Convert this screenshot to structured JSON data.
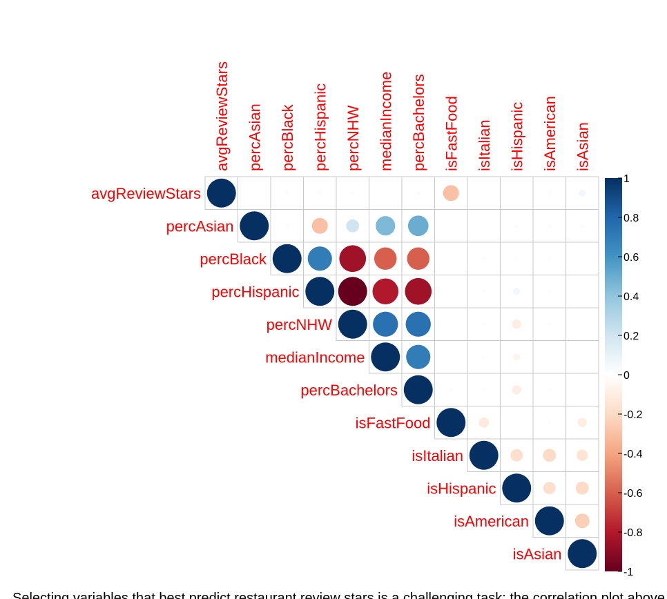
{
  "chart_data": {
    "type": "heatmap",
    "variables": [
      "avgReviewStars",
      "percAsian",
      "percBlack",
      "percHispanic",
      "percNHW",
      "medianIncome",
      "percBachelors",
      "isFastFood",
      "isItalian",
      "isHispanic",
      "isAmerican",
      "isAsian"
    ],
    "matrix": [
      [
        1,
        null,
        0.02,
        0.02,
        0.02,
        null,
        0.02,
        -0.3,
        null,
        null,
        0.02,
        0.06
      ],
      [
        null,
        1,
        -0.02,
        -0.3,
        0.2,
        0.45,
        0.5,
        null,
        null,
        -0.02,
        -0.02,
        0.02
      ],
      [
        null,
        null,
        1,
        0.7,
        -0.85,
        -0.6,
        -0.6,
        null,
        0.02,
        0.02,
        0.02,
        null
      ],
      [
        null,
        null,
        null,
        1,
        -1.0,
        -0.8,
        -0.85,
        null,
        0.02,
        0.06,
        0.02,
        null
      ],
      [
        null,
        null,
        null,
        null,
        1,
        0.75,
        0.75,
        null,
        0.02,
        -0.1,
        0.02,
        null
      ],
      [
        null,
        null,
        null,
        null,
        null,
        1,
        0.7,
        null,
        0.02,
        -0.06,
        null,
        null
      ],
      [
        null,
        null,
        null,
        null,
        null,
        null,
        1,
        0.02,
        0.02,
        -0.1,
        0.02,
        null
      ],
      [
        null,
        null,
        null,
        null,
        null,
        null,
        null,
        1,
        -0.12,
        null,
        -0.02,
        -0.1
      ],
      [
        null,
        null,
        null,
        null,
        null,
        null,
        null,
        null,
        1,
        -0.18,
        -0.2,
        -0.15
      ],
      [
        null,
        null,
        null,
        null,
        null,
        null,
        null,
        null,
        null,
        1,
        -0.18,
        -0.2
      ],
      [
        null,
        null,
        null,
        null,
        null,
        null,
        null,
        null,
        null,
        null,
        1,
        -0.25
      ],
      [
        null,
        null,
        null,
        null,
        null,
        null,
        null,
        null,
        null,
        null,
        null,
        1
      ]
    ],
    "colorbar": {
      "min": -1,
      "max": 1,
      "tick_labels": [
        "1",
        "0.8",
        "0.6",
        "0.4",
        "0.2",
        "0",
        "-0.2",
        "-0.4",
        "-0.6",
        "-0.8",
        "-1"
      ]
    },
    "label_color": "#ff0000",
    "grid": true
  },
  "footer_text": "Selecting variables that best predict restaurant review stars is a challenging task; the correlation plot above shows relationships."
}
